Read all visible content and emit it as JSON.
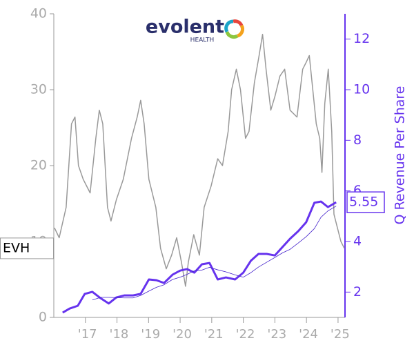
{
  "chart_data": {
    "type": "line",
    "logo": {
      "name": "evolent",
      "sub": "HEALTH"
    },
    "ticker": "EVH",
    "y2label": "Q Revenue Per Share",
    "xlim": [
      2016.0,
      2025.22
    ],
    "xticks": [
      {
        "value": 2017,
        "label": "'17"
      },
      {
        "value": 2018,
        "label": "'18"
      },
      {
        "value": 2019,
        "label": "'19"
      },
      {
        "value": 2020,
        "label": "'20"
      },
      {
        "value": 2021,
        "label": "'21"
      },
      {
        "value": 2022,
        "label": "'22"
      },
      {
        "value": 2023,
        "label": "'23"
      },
      {
        "value": 2024,
        "label": "'24"
      },
      {
        "value": 2025,
        "label": "'25"
      }
    ],
    "ylim": [
      0,
      40
    ],
    "yticks": [
      0,
      10,
      20,
      30,
      40
    ],
    "y2lim": [
      1,
      13
    ],
    "y2ticks": [
      2,
      4,
      6,
      8,
      10,
      12
    ],
    "series": [
      {
        "color": "#999999",
        "axis": "y",
        "width": 1.5,
        "x": [
          2016.02,
          2016.17,
          2016.39,
          2016.56,
          2016.67,
          2016.78,
          2016.93,
          2017.15,
          2017.33,
          2017.44,
          2017.55,
          2017.7,
          2017.81,
          2017.98,
          2018.2,
          2018.46,
          2018.64,
          2018.75,
          2018.86,
          2019.01,
          2019.23,
          2019.38,
          2019.56,
          2019.73,
          2019.89,
          2020.04,
          2020.17,
          2020.26,
          2020.43,
          2020.61,
          2020.76,
          2020.98,
          2021.19,
          2021.34,
          2021.52,
          2021.63,
          2021.78,
          2021.91,
          2022.07,
          2022.18,
          2022.35,
          2022.5,
          2022.61,
          2022.72,
          2022.87,
          2023.0,
          2023.16,
          2023.31,
          2023.48,
          2023.7,
          2023.88,
          2023.99,
          2024.09,
          2024.2,
          2024.31,
          2024.42,
          2024.49,
          2024.58,
          2024.69,
          2024.8,
          2024.87,
          2024.98,
          2025.09,
          2025.2
        ],
        "values": [
          11.8,
          10.5,
          14.5,
          25.5,
          26.4,
          20.0,
          18.2,
          16.4,
          23.6,
          27.3,
          25.5,
          14.5,
          12.7,
          15.5,
          18.2,
          23.6,
          26.4,
          28.6,
          25.5,
          18.2,
          14.5,
          9.1,
          6.4,
          8.2,
          10.5,
          7.3,
          4.1,
          7.3,
          10.9,
          8.2,
          14.5,
          17.3,
          20.9,
          20.0,
          24.5,
          30.0,
          32.7,
          30.0,
          23.6,
          24.5,
          30.9,
          34.5,
          37.3,
          32.7,
          27.3,
          29.1,
          31.8,
          32.7,
          27.3,
          26.4,
          32.7,
          33.6,
          34.5,
          30.0,
          25.5,
          23.6,
          19.1,
          28.2,
          32.7,
          24.5,
          13.6,
          11.8,
          10.0,
          9.1
        ]
      },
      {
        "color": "#6633ee",
        "axis": "y2",
        "width": 3,
        "x": [
          2016.28,
          2016.5,
          2016.76,
          2016.98,
          2017.22,
          2017.48,
          2017.74,
          2017.98,
          2018.24,
          2018.51,
          2018.75,
          2019.01,
          2019.25,
          2019.49,
          2019.76,
          2020.0,
          2020.22,
          2020.45,
          2020.69,
          2020.93,
          2021.19,
          2021.45,
          2021.74,
          2022.0,
          2022.24,
          2022.48,
          2022.74,
          2023.0,
          2023.24,
          2023.48,
          2023.74,
          2023.99,
          2024.25,
          2024.46,
          2024.68,
          2024.94
        ],
        "values": [
          1.19,
          1.35,
          1.46,
          1.93,
          2.01,
          1.76,
          1.55,
          1.79,
          1.87,
          1.87,
          1.93,
          2.5,
          2.47,
          2.36,
          2.69,
          2.85,
          2.91,
          2.77,
          3.1,
          3.15,
          2.5,
          2.58,
          2.5,
          2.77,
          3.24,
          3.51,
          3.51,
          3.45,
          3.78,
          4.11,
          4.41,
          4.76,
          5.53,
          5.58,
          5.36,
          5.55
        ]
      },
      {
        "color": "#4422cc",
        "axis": "y2",
        "width": 0.8,
        "x": [
          2017.22,
          2017.48,
          2017.74,
          2017.98,
          2018.24,
          2018.51,
          2018.75,
          2019.01,
          2019.25,
          2019.49,
          2019.76,
          2020.0,
          2020.22,
          2020.45,
          2020.69,
          2020.93,
          2021.19,
          2021.45,
          2021.74,
          2022.0,
          2022.24,
          2022.48,
          2022.74,
          2023.0,
          2023.24,
          2023.48,
          2023.74,
          2023.99,
          2024.25,
          2024.46,
          2024.68,
          2024.94
        ],
        "values": [
          1.69,
          1.79,
          1.79,
          1.78,
          1.77,
          1.77,
          1.87,
          2.04,
          2.19,
          2.29,
          2.5,
          2.59,
          2.7,
          2.84,
          2.87,
          2.98,
          2.88,
          2.8,
          2.68,
          2.59,
          2.77,
          2.99,
          3.18,
          3.37,
          3.55,
          3.69,
          3.94,
          4.19,
          4.51,
          4.96,
          5.21,
          5.4
        ]
      }
    ]
  }
}
